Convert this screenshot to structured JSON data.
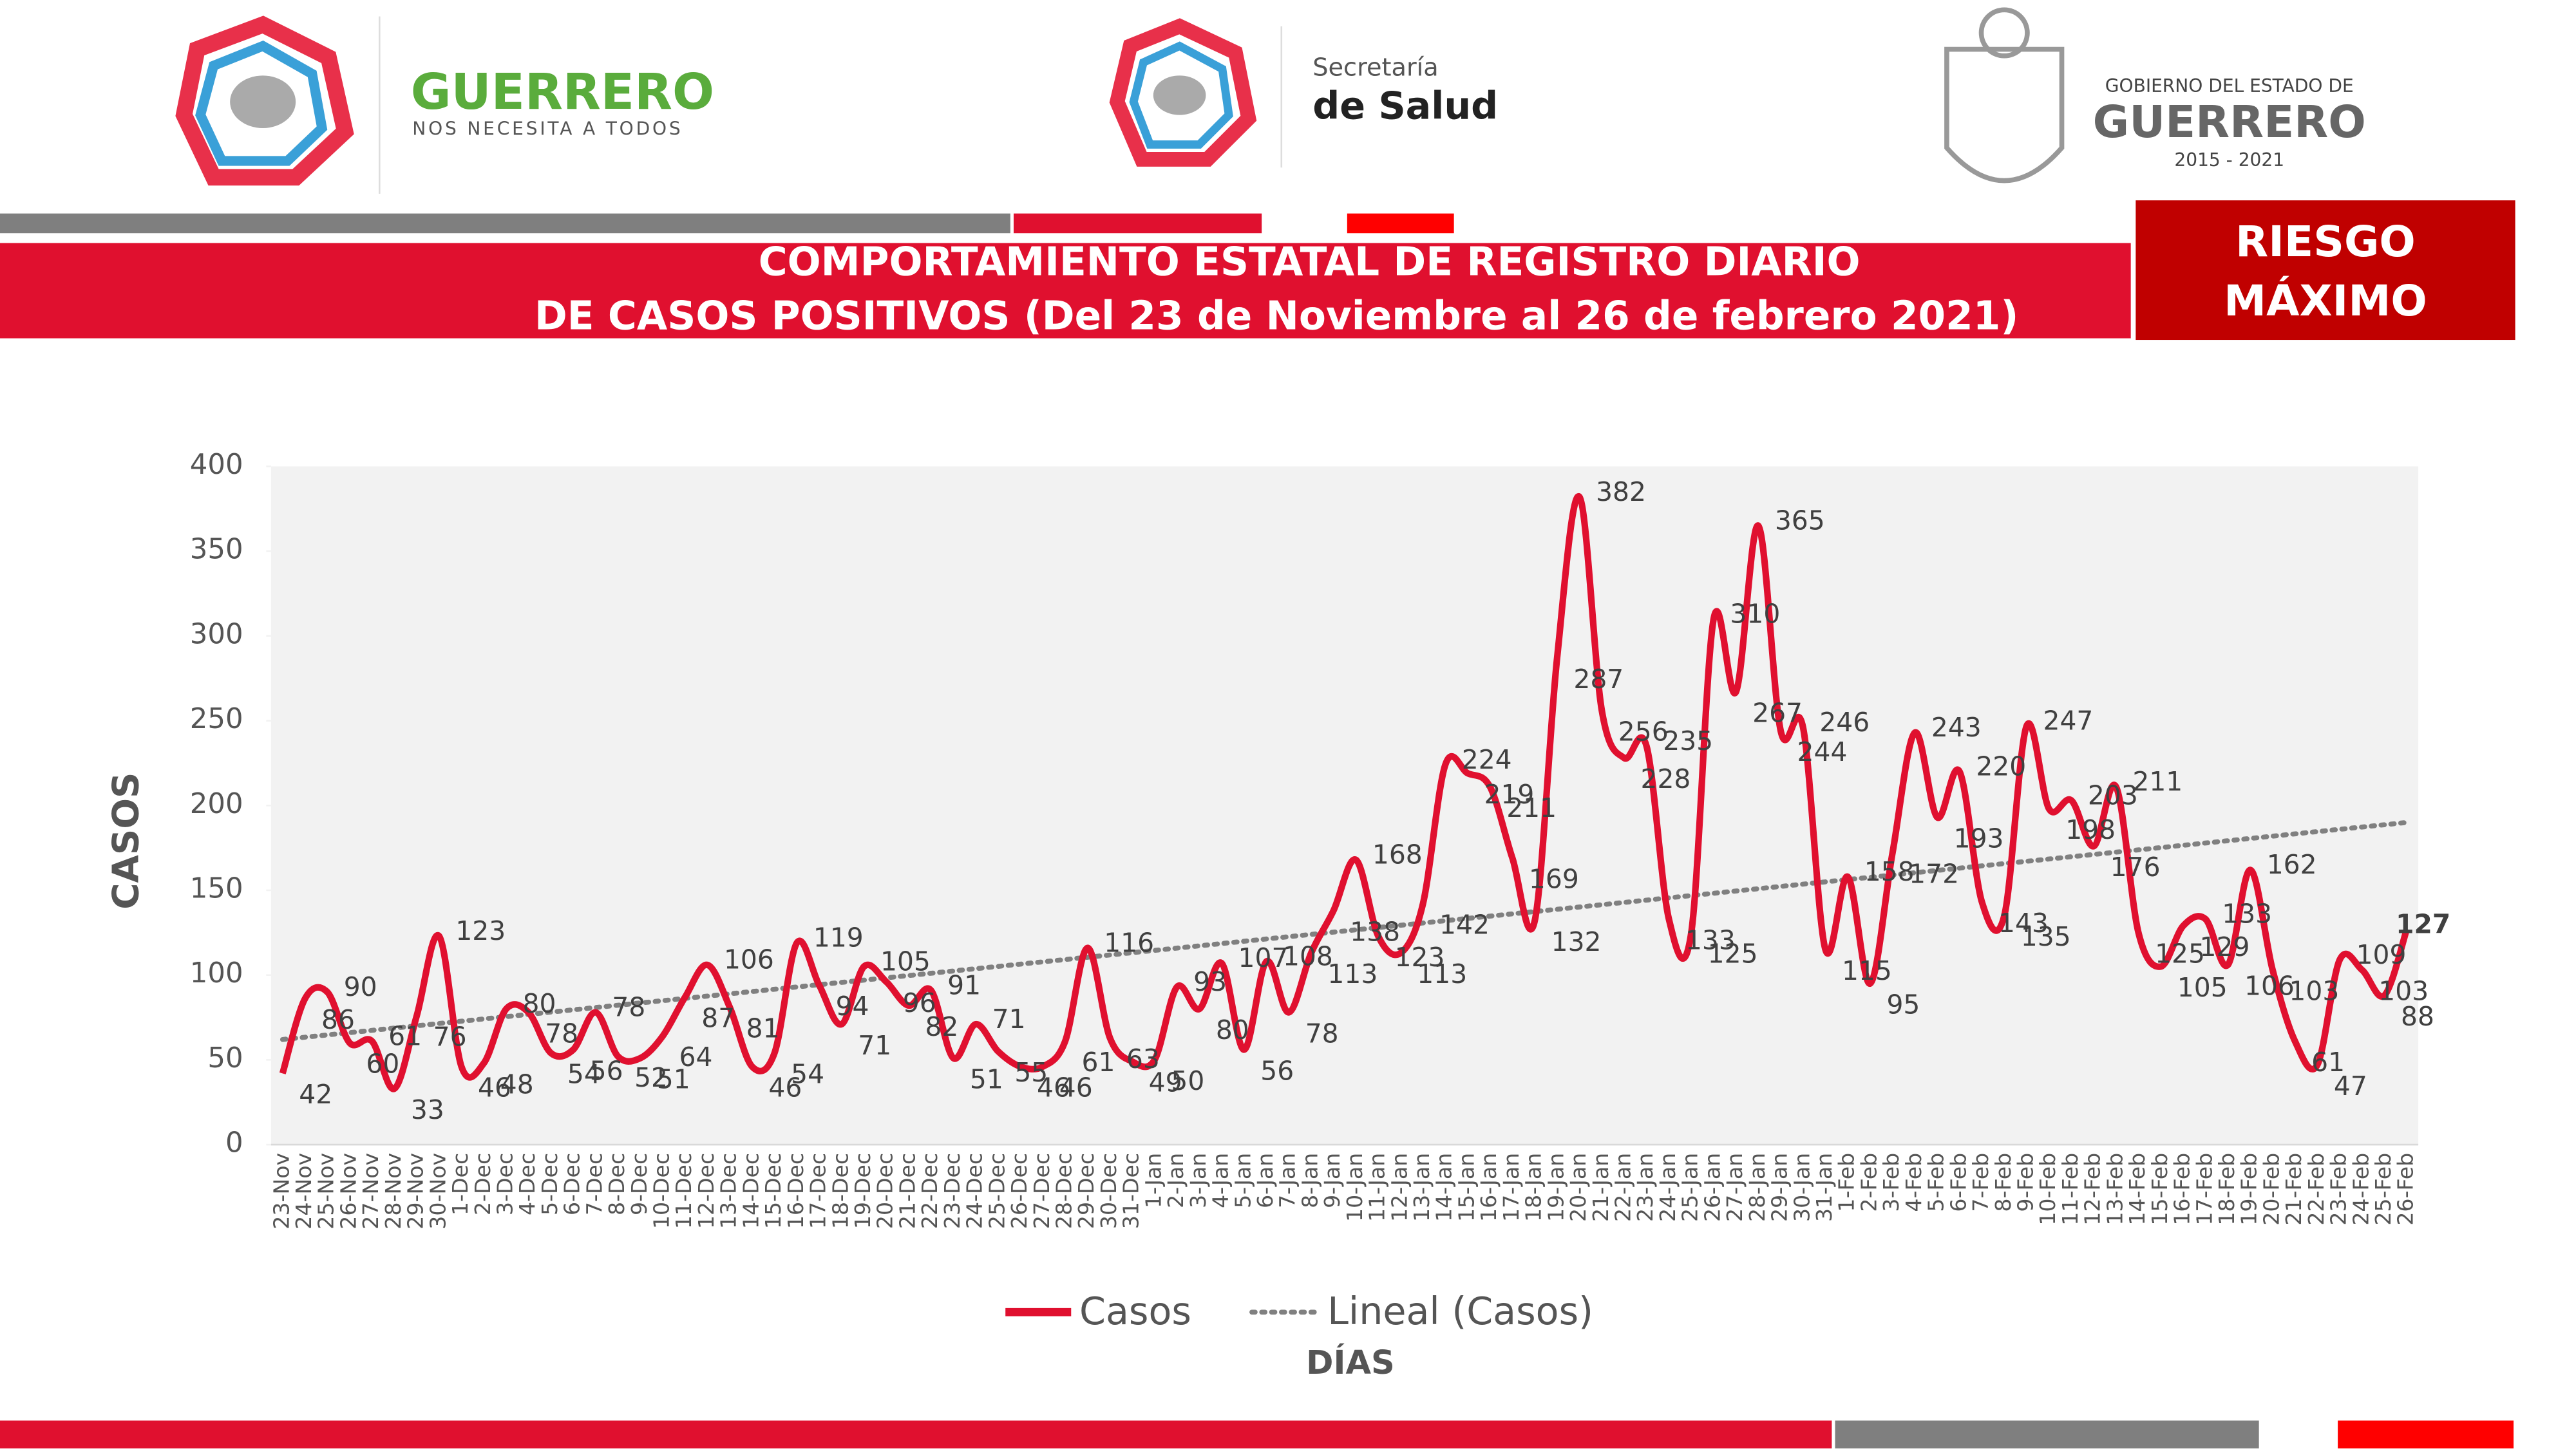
{
  "header": {
    "left_logo": {
      "title": "GUERRERO",
      "subtitle": "NOS NECESITA A TODOS"
    },
    "center_logo": {
      "line1": "Secretaría",
      "line2": "de Salud"
    },
    "right_logo": {
      "line1": "GOBIERNO DEL ESTADO DE",
      "line2": "GUERRERO",
      "line3": "2015 - 2021"
    },
    "title_line1": "COMPORTAMIENTO ESTATAL DE REGISTRO DIARIO",
    "title_line2": "DE CASOS POSITIVOS (Del 23 de Noviembre al 26 de febrero 2021)",
    "risk": "RIESGO MÁXIMO"
  },
  "chart_data": {
    "type": "line",
    "y_label": "CASOS",
    "x_label": "DÍAS",
    "categories": [
      "23-Nov",
      "24-Nov",
      "25-Nov",
      "26-Nov",
      "27-Nov",
      "28-Nov",
      "29-Nov",
      "30-Nov",
      "1-Dec",
      "2-Dec",
      "3-Dec",
      "4-Dec",
      "5-Dec",
      "6-Dec",
      "7-Dec",
      "8-Dec",
      "9-Dec",
      "10-Dec",
      "11-Dec",
      "12-Dec",
      "13-Dec",
      "14-Dec",
      "15-Dec",
      "16-Dec",
      "17-Dec",
      "18-Dec",
      "19-Dec",
      "20-Dec",
      "21-Dec",
      "22-Dec",
      "23-Dec",
      "24-Dec",
      "25-Dec",
      "26-Dec",
      "27-Dec",
      "28-Dec",
      "29-Dec",
      "30-Dec",
      "31-Dec",
      "1-Jan",
      "2-Jan",
      "3-Jan",
      "4-Jan",
      "5-Jan",
      "6-Jan",
      "7-Jan",
      "8-Jan",
      "9-Jan",
      "10-Jan",
      "11-Jan",
      "12-Jan",
      "13-Jan",
      "14-Jan",
      "15-Jan",
      "16-Jan",
      "17-Jan",
      "18-Jan",
      "19-Jan",
      "20-Jan",
      "21-Jan",
      "22-Jan",
      "23-Jan",
      "24-Jan",
      "25-Jan",
      "26-Jan",
      "27-Jan",
      "28-Jan",
      "29-Jan",
      "30-Jan",
      "31-Jan",
      "1-Feb",
      "2-Feb",
      "3-Feb",
      "4-Feb",
      "5-Feb",
      "6-Feb",
      "7-Feb",
      "8-Feb",
      "9-Feb",
      "10-Feb",
      "11-Feb",
      "12-Feb",
      "13-Feb",
      "14-Feb",
      "15-Feb",
      "16-Feb",
      "17-Feb",
      "18-Feb",
      "19-Feb",
      "20-Feb",
      "21-Feb",
      "22-Feb",
      "23-Feb",
      "24-Feb",
      "25-Feb",
      "26-Feb"
    ],
    "series": [
      {
        "name": "Casos",
        "color": "#e0102f",
        "values": [
          42,
          86,
          90,
          60,
          61,
          33,
          76,
          123,
          46,
          48,
          80,
          78,
          54,
          56,
          78,
          52,
          51,
          64,
          87,
          106,
          81,
          46,
          54,
          119,
          94,
          71,
          105,
          96,
          82,
          91,
          51,
          71,
          55,
          46,
          46,
          61,
          116,
          63,
          49,
          50,
          93,
          80,
          107,
          56,
          108,
          78,
          113,
          138,
          168,
          123,
          113,
          142,
          224,
          219,
          211,
          169,
          132,
          287,
          382,
          256,
          228,
          235,
          133,
          125,
          310,
          267,
          365,
          244,
          246,
          115,
          158,
          95,
          172,
          243,
          193,
          220,
          143,
          135,
          247,
          198,
          203,
          176,
          211,
          125,
          105,
          129,
          133,
          106,
          162,
          103,
          61,
          47,
          109,
          103,
          88,
          127
        ]
      }
    ],
    "trendline": {
      "name": "Lineal (Casos)",
      "color": "#808080",
      "start": 62,
      "end": 190
    },
    "ylim": [
      0,
      400
    ],
    "yticks": [
      0,
      50,
      100,
      150,
      200,
      250,
      300,
      350,
      400
    ]
  }
}
